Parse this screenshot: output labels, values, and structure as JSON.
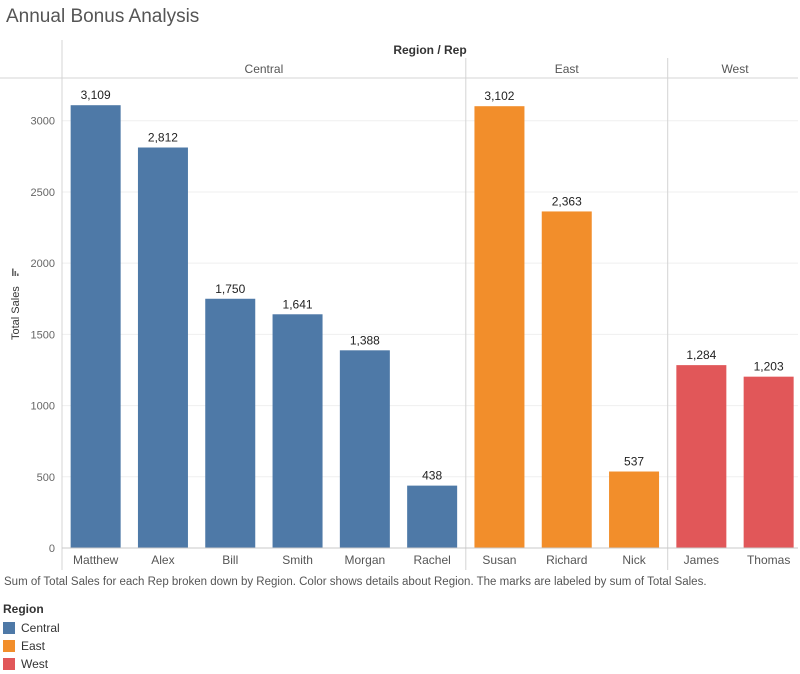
{
  "title": "Annual Bonus Analysis",
  "caption": "Sum of Total Sales for each Rep broken down by Region.  Color shows details about Region.  The marks are labeled by sum of Total Sales.",
  "colors": {
    "Central": "#4e79a7",
    "East": "#f28e2b",
    "West": "#e15759"
  },
  "legend": {
    "title": "Region",
    "items": [
      {
        "label": "Central",
        "color": "#4e79a7"
      },
      {
        "label": "East",
        "color": "#f28e2b"
      },
      {
        "label": "West",
        "color": "#e15759"
      }
    ]
  },
  "chart_data": {
    "type": "bar",
    "column_header": "Region / Rep",
    "ylabel": "Total Sales",
    "ylim": [
      0,
      3300
    ],
    "yticks": [
      0,
      500,
      1000,
      1500,
      2000,
      2500,
      3000
    ],
    "grid": true,
    "groups": [
      {
        "name": "Central",
        "categories": [
          "Matthew",
          "Alex",
          "Bill",
          "Smith",
          "Morgan",
          "Rachel"
        ],
        "values": [
          3109,
          2812,
          1750,
          1641,
          1388,
          438
        ],
        "labels": [
          "3,109",
          "2,812",
          "1,750",
          "1,641",
          "1,388",
          "438"
        ]
      },
      {
        "name": "East",
        "categories": [
          "Susan",
          "Richard",
          "Nick"
        ],
        "values": [
          3102,
          2363,
          537
        ],
        "labels": [
          "3,102",
          "2,363",
          "537"
        ]
      },
      {
        "name": "West",
        "categories": [
          "James",
          "Thomas"
        ],
        "values": [
          1284,
          1203
        ],
        "labels": [
          "1,284",
          "1,203"
        ]
      }
    ]
  }
}
